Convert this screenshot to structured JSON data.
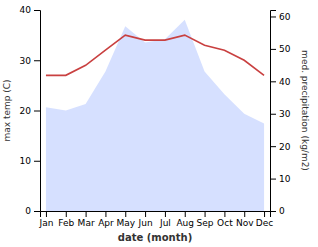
{
  "chart_data": {
    "type": "line",
    "categories": [
      "Jan",
      "Feb",
      "Mar",
      "Apr",
      "May",
      "Jun",
      "Jul",
      "Aug",
      "Sep",
      "Oct",
      "Nov",
      "Dec"
    ],
    "series": [
      {
        "type": "area",
        "axis": "y2",
        "color": "#c0cfff",
        "values": [
          32,
          31,
          33,
          43,
          57,
          52,
          53,
          59,
          43,
          36,
          30,
          27
        ]
      },
      {
        "type": "line",
        "color": "#c94040",
        "values": [
          27,
          27,
          29,
          32,
          35,
          34,
          34,
          35,
          33,
          32,
          30,
          27
        ]
      }
    ],
    "xlabel": "date (month)",
    "ylabel": "max temp (C)",
    "y2label": "med. precipitation (kg/m2)",
    "ylim": [
      0,
      40
    ],
    "yticks": [
      0,
      10,
      20,
      30,
      40
    ],
    "y2lim": [
      0,
      62
    ],
    "y2ticks": [
      0,
      10,
      20,
      30,
      40,
      50,
      60
    ],
    "grid": false
  }
}
